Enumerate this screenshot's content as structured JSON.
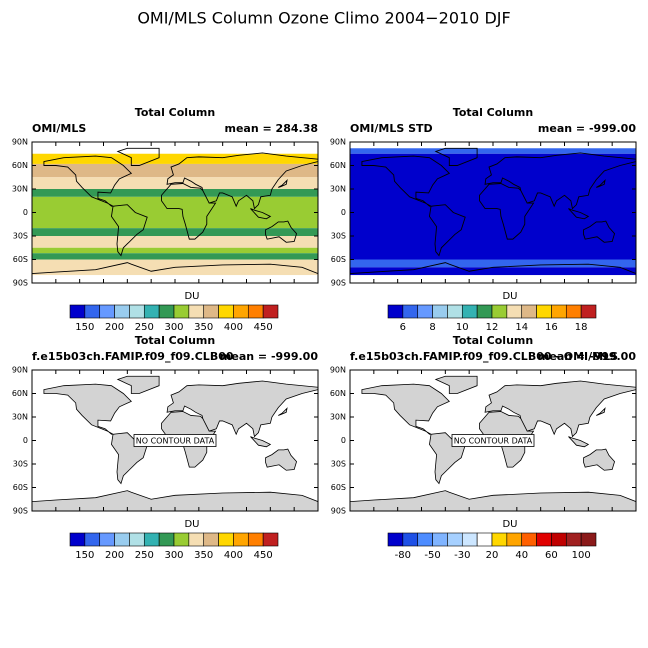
{
  "title": "OMI/MLS Column Ozone Climo 2004−2010 DJF",
  "lat_labels": [
    "90N",
    "60N",
    "30N",
    "0",
    "30S",
    "60S",
    "90S"
  ],
  "panels": [
    {
      "title": "Total Column",
      "left": "OMI/MLS",
      "right": "mean = 284.38",
      "colorbar": {
        "units": "DU",
        "labels": [
          150,
          200,
          250,
          300,
          350,
          400,
          450
        ],
        "colors": [
          "#0000cc",
          "#3366ee",
          "#6699ff",
          "#99ccee",
          "#b0e0e6",
          "#33b2b2",
          "#339955",
          "#99cc33",
          "#f5deb3",
          "#deb887",
          "#ffd700",
          "#ffa500",
          "#ff7f00",
          "#c02020"
        ]
      }
    },
    {
      "title": "Total Column",
      "left": "OMI/MLS STD",
      "right": "mean = -999.00",
      "colorbar": {
        "units": "DU",
        "labels": [
          6,
          8,
          10,
          12,
          14,
          16,
          18
        ],
        "colors": [
          "#0000cc",
          "#3366ee",
          "#6699ff",
          "#99ccee",
          "#b0e0e6",
          "#33b2b2",
          "#339955",
          "#99cc33",
          "#f5deb3",
          "#deb887",
          "#ffd700",
          "#ffa500",
          "#ff7f00",
          "#c02020"
        ]
      }
    },
    {
      "title": "Total Column",
      "left": "f.e15b03ch.FAMIP.f09_f09.CLB00",
      "right": "mean = -999.00",
      "note": "NO CONTOUR DATA",
      "colorbar": {
        "units": "DU",
        "labels": [
          150,
          200,
          250,
          300,
          350,
          400,
          450
        ],
        "colors": [
          "#0000cc",
          "#3366ee",
          "#6699ff",
          "#99ccee",
          "#b0e0e6",
          "#33b2b2",
          "#339955",
          "#99cc33",
          "#f5deb3",
          "#deb887",
          "#ffd700",
          "#ffa500",
          "#ff7f00",
          "#c02020"
        ]
      }
    },
    {
      "title": "Total Column",
      "left": "f.e15b03ch.FAMIP.f09_f09.CLB00 - OMI/MLS",
      "right": "mean = -999.00",
      "note": "NO CONTOUR DATA",
      "colorbar": {
        "units": "DU",
        "labels": [
          -80,
          -50,
          -30,
          20,
          40,
          60,
          100
        ],
        "colors": [
          "#0000cc",
          "#1e50e6",
          "#4d8cff",
          "#80b4ff",
          "#a6d0ff",
          "#cce6ff",
          "#ffffff",
          "#ffd700",
          "#ffa500",
          "#ff6000",
          "#e00000",
          "#c00000",
          "#a02020",
          "#8b1a1a"
        ]
      }
    }
  ]
}
